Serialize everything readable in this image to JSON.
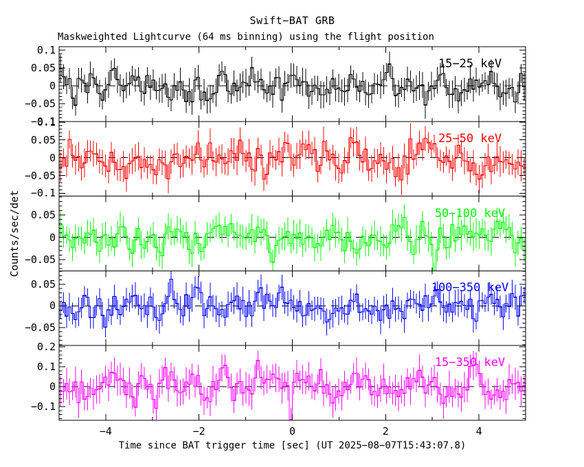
{
  "chart_data": {
    "type": "line",
    "style": "step-histogram-with-errorbars",
    "title": "Swift−BAT GRB",
    "subtitle": "Maskweighted Lightcurve (64 ms binning) using the flight position",
    "xlabel": "Time since BAT trigger time [sec] (UT 2025−08−07T15:43:07.8)",
    "ylabel": "Counts/sec/det",
    "trigger_time_ut": "2025−08−07T15:43:07.8",
    "bin_seconds": 0.064,
    "n_bins": 156,
    "xlim": [
      -5,
      5
    ],
    "xticks": {
      "major": [
        -4,
        -2,
        0,
        2,
        4
      ],
      "labels": [
        "−4",
        "−2",
        "0",
        "2",
        "4"
      ],
      "minor_step": 1
    },
    "grid": false,
    "legend_position": "inside-top-right-per-panel",
    "zero_line": {
      "style": "dashed",
      "color": "#000000",
      "value": 0
    },
    "panels": [
      {
        "label": "15−25 keV",
        "color": "#000000",
        "ylim": [
          -0.1,
          0.11
        ],
        "ytick_major_step": 0.05,
        "ytick_minor_step": 0.01,
        "yticks": [
          {
            "v": 0.1,
            "label": "0.1"
          },
          {
            "v": 0.05,
            "label": "0.05"
          },
          {
            "v": 0,
            "label": "0"
          },
          {
            "v": -0.05,
            "label": "−0.05"
          },
          {
            "v": -0.1,
            "label": "−0.1"
          }
        ],
        "noise_model": {
          "mean": 0,
          "sigma": 0.022,
          "errorbar_half_length": 0.032,
          "seed": 20250807
        }
      },
      {
        "label": "25−50 keV",
        "color": "#ff0000",
        "ylim": [
          -0.108,
          0.102
        ],
        "ytick_major_step": 0.05,
        "ytick_minor_step": 0.01,
        "yticks": [
          {
            "v": 0.1,
            "label": "0.1"
          },
          {
            "v": 0.05,
            "label": "0.05"
          },
          {
            "v": 0,
            "label": "0"
          },
          {
            "v": -0.05,
            "label": "−0.05"
          },
          {
            "v": -0.1,
            "label": "−0.1"
          }
        ],
        "noise_model": {
          "mean": 0,
          "sigma": 0.026,
          "errorbar_half_length": 0.034,
          "seed": 15437
        }
      },
      {
        "label": "50−100 keV",
        "color": "#00ff00",
        "ylim": [
          -0.075,
          0.092
        ],
        "ytick_major_step": 0.05,
        "ytick_minor_step": 0.01,
        "yticks": [
          {
            "v": 0.05,
            "label": "0.05"
          },
          {
            "v": 0,
            "label": "0"
          },
          {
            "v": -0.05,
            "label": "−0.05"
          }
        ],
        "noise_model": {
          "mean": 0,
          "sigma": 0.019,
          "errorbar_half_length": 0.027,
          "seed": 911
        }
      },
      {
        "label": "100−350 keV",
        "color": "#0000ff",
        "ylim": [
          -0.092,
          0.081
        ],
        "ytick_major_step": 0.05,
        "ytick_minor_step": 0.01,
        "yticks": [
          {
            "v": 0.05,
            "label": "0.05"
          },
          {
            "v": 0,
            "label": "0"
          },
          {
            "v": -0.05,
            "label": "−0.05"
          }
        ],
        "noise_model": {
          "mean": 0,
          "sigma": 0.019,
          "errorbar_half_length": 0.026,
          "seed": 4207
        }
      },
      {
        "label": "15−350 keV",
        "color": "#ff00ff",
        "ylim": [
          -0.169,
          0.207
        ],
        "ytick_major_step": 0.1,
        "ytick_minor_step": 0.02,
        "yticks": [
          {
            "v": 0.2,
            "label": "0.2"
          },
          {
            "v": 0.1,
            "label": "0.1"
          },
          {
            "v": 0,
            "label": "0"
          },
          {
            "v": -0.1,
            "label": "−0.1"
          }
        ],
        "noise_model": {
          "mean": 0,
          "sigma": 0.048,
          "errorbar_half_length": 0.064,
          "seed": 64
        }
      }
    ]
  }
}
